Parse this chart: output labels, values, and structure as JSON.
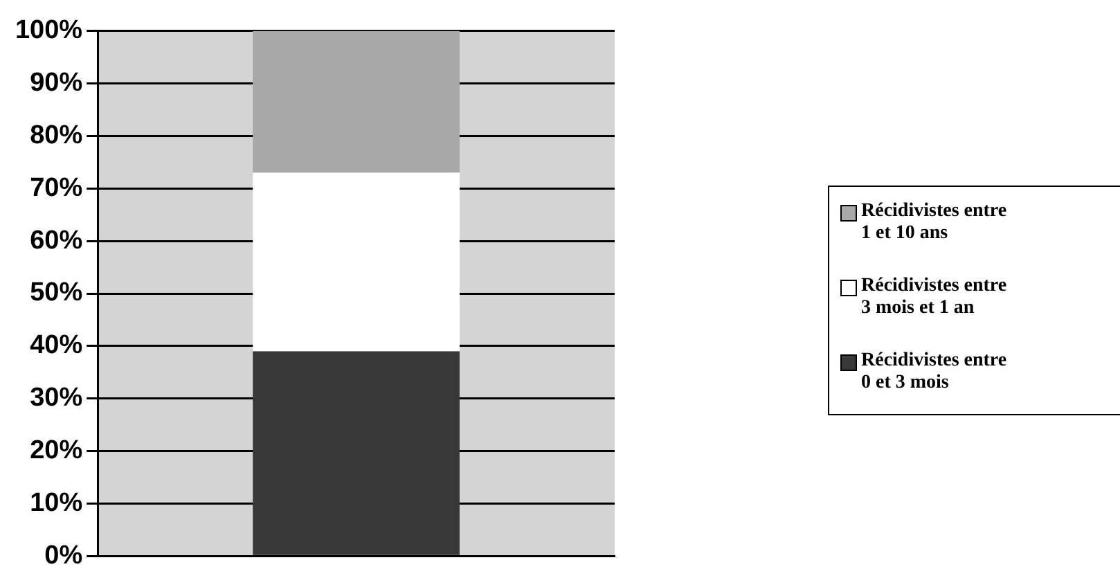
{
  "chart_data": {
    "type": "bar",
    "stacked": true,
    "categories": [
      null
    ],
    "series": [
      {
        "name": "Récidivistes entre 0 et 3 mois",
        "color": "#383838",
        "values": [
          39
        ]
      },
      {
        "name": "Récidivistes entre 3 mois et 1 an",
        "color": "#ffffff",
        "values": [
          34
        ]
      },
      {
        "name": "Récidivistes entre 1 et 10 ans",
        "color": "#a8a8a8",
        "values": [
          27
        ]
      }
    ],
    "ylim": [
      0,
      100
    ],
    "yticks": [
      {
        "value": 0,
        "label": "0%"
      },
      {
        "value": 10,
        "label": "10%"
      },
      {
        "value": 20,
        "label": "20%"
      },
      {
        "value": 30,
        "label": "30%"
      },
      {
        "value": 40,
        "label": "40%"
      },
      {
        "value": 50,
        "label": "50%"
      },
      {
        "value": 60,
        "label": "60%"
      },
      {
        "value": 70,
        "label": "70%"
      },
      {
        "value": 80,
        "label": "80%"
      },
      {
        "value": 90,
        "label": "90%"
      },
      {
        "value": 100,
        "label": "100%"
      }
    ],
    "grid": "y",
    "legend": "right"
  }
}
